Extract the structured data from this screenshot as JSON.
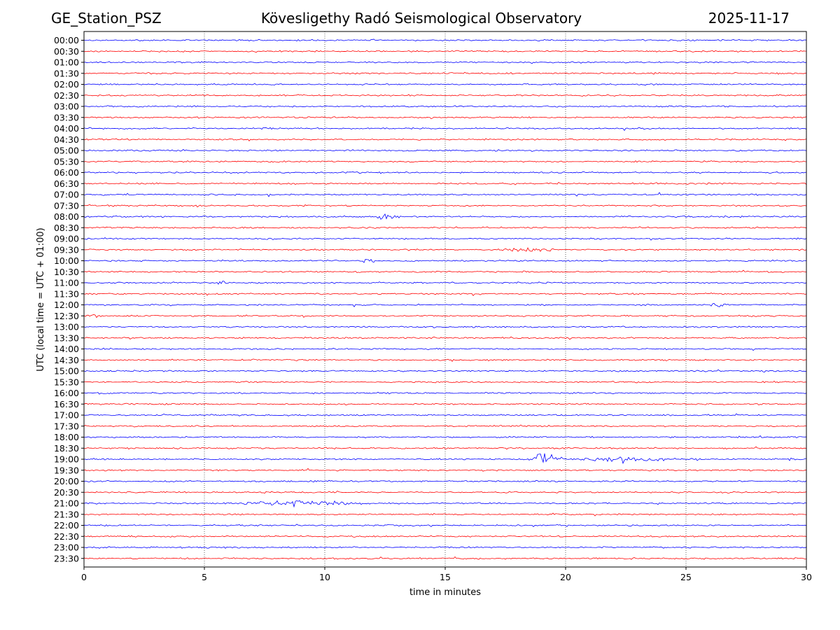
{
  "chart_data": {
    "type": "line",
    "station": "GE_Station_PSZ",
    "title": "Kövesligethy Radó Seismological Observatory",
    "date": "2025-11-17",
    "xlabel": "time in minutes",
    "ylabel": "UTC (local time = UTC + 01:00)",
    "xlim": [
      0,
      30
    ],
    "x_ticks": [
      "0",
      "5",
      "10",
      "15",
      "20",
      "25",
      "30"
    ],
    "x_tick_values": [
      0,
      5,
      10,
      15,
      20,
      25,
      30
    ],
    "grid_x_values": [
      5,
      10,
      15,
      20,
      25
    ],
    "trace_colors": [
      "#0000ff",
      "#ff0000"
    ],
    "rows": [
      "00:00",
      "00:30",
      "01:00",
      "01:30",
      "02:00",
      "02:30",
      "03:00",
      "03:30",
      "04:00",
      "04:30",
      "05:00",
      "05:30",
      "06:00",
      "06:30",
      "07:00",
      "07:30",
      "08:00",
      "08:30",
      "09:00",
      "09:30",
      "10:00",
      "10:30",
      "11:00",
      "11:30",
      "12:00",
      "12:30",
      "13:00",
      "13:30",
      "14:00",
      "14:30",
      "15:00",
      "15:30",
      "16:00",
      "16:30",
      "17:00",
      "17:30",
      "18:00",
      "18:30",
      "19:00",
      "19:30",
      "20:00",
      "20:30",
      "21:00",
      "21:30",
      "22:00",
      "22:30",
      "23:00",
      "23:30"
    ],
    "events": [
      {
        "row": "08:00",
        "start_min": 12.1,
        "end_min": 13.2,
        "amplitude": 4
      },
      {
        "row": "09:30",
        "start_min": 17.2,
        "end_min": 20.0,
        "amplitude": 2.5
      },
      {
        "row": "10:00",
        "start_min": 11.4,
        "end_min": 12.2,
        "amplitude": 4
      },
      {
        "row": "11:00",
        "start_min": 5.4,
        "end_min": 6.3,
        "amplitude": 3
      },
      {
        "row": "12:00",
        "start_min": 26.0,
        "end_min": 26.8,
        "amplitude": 4
      },
      {
        "row": "12:30",
        "start_min": 0.2,
        "end_min": 0.8,
        "amplitude": 3
      },
      {
        "row": "19:00",
        "start_min": 18.6,
        "end_min": 20.5,
        "amplitude": 17
      },
      {
        "row": "19:00",
        "start_min": 20.5,
        "end_min": 25.0,
        "amplitude": 4
      },
      {
        "row": "21:00",
        "start_min": 6.5,
        "end_min": 11.8,
        "amplitude": 4
      }
    ]
  }
}
